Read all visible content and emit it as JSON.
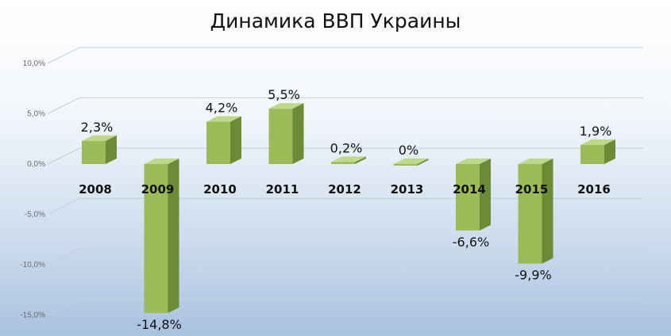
{
  "chart_data": {
    "type": "bar",
    "title": "Динамика ВВП Украины",
    "categories": [
      "2008",
      "2009",
      "2010",
      "2011",
      "2012",
      "2013",
      "2014",
      "2015",
      "2016"
    ],
    "values": [
      2.3,
      -14.8,
      4.2,
      5.5,
      0.2,
      0,
      -6.6,
      -9.9,
      1.9
    ],
    "data_labels": [
      "2,3%",
      "-14,8%",
      "4,2%",
      "5,5%",
      "0,2%",
      "0%",
      "-6,6%",
      "-9,9%",
      "1,9%"
    ],
    "y_ticks": [
      10,
      5,
      0,
      -5,
      -10,
      -15
    ],
    "y_tick_labels": [
      "10,0%",
      "5,0%",
      "0,0%",
      "-5,0%",
      "-10,0%",
      "-15,0%"
    ],
    "ylim": [
      -15,
      10
    ],
    "grid": true,
    "legend": "none",
    "three_d": true,
    "colors": {
      "bar_front": "#9bbb59",
      "bar_side": "#6d8a36",
      "bar_top": "#bfd98a",
      "gridline": "#c4cfdc"
    }
  }
}
